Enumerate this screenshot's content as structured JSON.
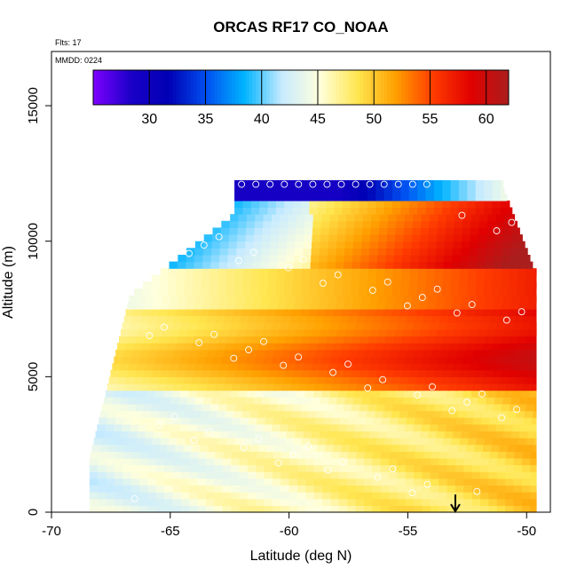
{
  "chart_data": {
    "type": "heatmap",
    "title": "ORCAS RF17 CO_NOAA",
    "subtitle": "Flts: 17",
    "annotation": "MMDD: 0224",
    "xlabel": "Latitude (deg N)",
    "ylabel": "Altitude (m)",
    "xlim": [
      -70,
      -49
    ],
    "ylim": [
      0,
      17000
    ],
    "x_ticks": [
      -70,
      -65,
      -60,
      -55,
      -50
    ],
    "x_tick_labels": [
      "-70",
      "-65",
      "-60",
      "-55",
      "-50"
    ],
    "y_ticks": [
      0,
      5000,
      10000,
      15000
    ],
    "y_tick_labels": [
      "0",
      "5000",
      "10000",
      "15000"
    ],
    "colorbar": {
      "range": [
        25,
        62
      ],
      "ticks": [
        30,
        35,
        40,
        45,
        50,
        55,
        60
      ],
      "tick_labels": [
        "30",
        "35",
        "40",
        "45",
        "50",
        "55",
        "60"
      ],
      "colors": [
        "#7f00ff",
        "#1a00c8",
        "#0000b4",
        "#0050f0",
        "#00b4ff",
        "#c8ebff",
        "#ffffdc",
        "#ffe650",
        "#ffa000",
        "#ff3c00",
        "#e10000",
        "#aa1e1e"
      ]
    },
    "field_description_bands": [
      {
        "alt_range": [
          11500,
          12200
        ],
        "value": 30
      },
      {
        "alt_range": [
          9000,
          11500
        ],
        "value_left": 34,
        "value_right": 58
      },
      {
        "alt_range": [
          7500,
          9000
        ],
        "value_left": 42,
        "value_right": 57
      },
      {
        "alt_range": [
          4500,
          7500
        ],
        "value_left": 47,
        "value_right": 60
      },
      {
        "alt_range": [
          0,
          4500
        ],
        "value_left": 44,
        "value_right": 50
      }
    ],
    "marker_x": -53,
    "marker_label": "arrow",
    "grid": false,
    "legend": "colorbar top"
  }
}
